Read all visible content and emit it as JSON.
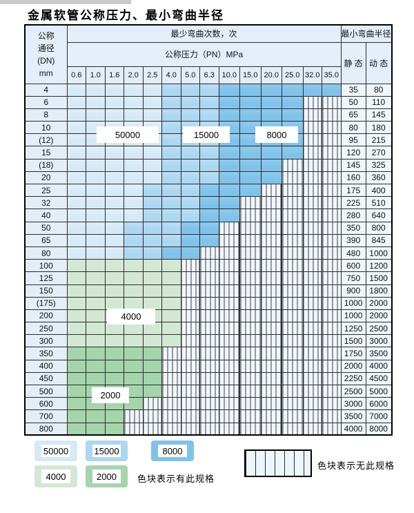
{
  "title": "金属软管公称压力、最小弯曲半径",
  "colors": {
    "b1": "#d6e9f7",
    "b2": "#abd7f1",
    "b3": "#7fc3ea",
    "g1": "#d3e8d3",
    "g2": "#a4d5ab",
    "hatchbg": "#f0f6fc",
    "labbg": "#e3eef9",
    "valbg": "#eff6fc"
  },
  "table": {
    "header": {
      "dn_label_lines": [
        "公称",
        "通径",
        "(DN)",
        "mm"
      ],
      "bend_cycles_label": "最少弯曲次数，次",
      "pressure_label": "公称压力（PN）MPa",
      "min_bend_radius_label": "最小弯曲半径",
      "static_label": "静 态",
      "dynamic_label": "动 态",
      "pressure_columns": [
        "0.6",
        "1.0",
        "1.6",
        "2.0",
        "2.5",
        "4.0",
        "5.0",
        "6.3",
        "10.0",
        "15.0",
        "20.0",
        "25.0",
        "32.0",
        "35.0"
      ]
    },
    "tone_meaning": {
      "b1": "50000",
      "b2": "15000",
      "b3": "8000",
      "g1": "4000",
      "g2": "2000",
      "hatch": "无此规格"
    },
    "rows": [
      {
        "dn": "4",
        "static": "35",
        "dynamic": "80",
        "type": "blue",
        "t1": 5,
        "t2": 3,
        "t3": 6
      },
      {
        "dn": "6",
        "static": "50",
        "dynamic": "110",
        "type": "blue",
        "t1": 5,
        "t2": 3,
        "t3": 4
      },
      {
        "dn": "8",
        "static": "65",
        "dynamic": "145",
        "type": "blue",
        "t1": 5,
        "t2": 3,
        "t3": 4
      },
      {
        "dn": "10",
        "static": "80",
        "dynamic": "180",
        "type": "blue",
        "t1": 5,
        "t2": 3,
        "t3": 4
      },
      {
        "dn": "(12)",
        "static": "95",
        "dynamic": "215",
        "type": "blue",
        "t1": 5,
        "t2": 3,
        "t3": 4
      },
      {
        "dn": "15",
        "static": "120",
        "dynamic": "270",
        "type": "blue",
        "t1": 5,
        "t2": 3,
        "t3": 4
      },
      {
        "dn": "(18)",
        "static": "145",
        "dynamic": "325",
        "type": "blue",
        "t1": 5,
        "t2": 3,
        "t3": 3
      },
      {
        "dn": "20",
        "static": "160",
        "dynamic": "360",
        "type": "blue",
        "t1": 5,
        "t2": 3,
        "t3": 3
      },
      {
        "dn": "25",
        "static": "175",
        "dynamic": "400",
        "type": "blue",
        "t1": 4,
        "t2": 3,
        "t3": 3
      },
      {
        "dn": "32",
        "static": "225",
        "dynamic": "510",
        "type": "blue",
        "t1": 4,
        "t2": 3,
        "t3": 2
      },
      {
        "dn": "40",
        "static": "280",
        "dynamic": "640",
        "type": "blue",
        "t1": 4,
        "t2": 3,
        "t3": 2
      },
      {
        "dn": "50",
        "static": "350",
        "dynamic": "800",
        "type": "blue",
        "t1": 3,
        "t2": 3,
        "t3": 2
      },
      {
        "dn": "65",
        "static": "390",
        "dynamic": "845",
        "type": "blue",
        "t1": 3,
        "t2": 3,
        "t3": 2
      },
      {
        "dn": "80",
        "static": "480",
        "dynamic": "1000",
        "type": "blue",
        "t1": 3,
        "t2": 2,
        "t3": 2
      },
      {
        "dn": "100",
        "static": "600",
        "dynamic": "1200",
        "type": "green",
        "tone": "g1",
        "n": 6
      },
      {
        "dn": "125",
        "static": "750",
        "dynamic": "1500",
        "type": "green",
        "tone": "g1",
        "n": 6
      },
      {
        "dn": "150",
        "static": "900",
        "dynamic": "1800",
        "type": "green",
        "tone": "g1",
        "n": 6
      },
      {
        "dn": "(175)",
        "static": "1000",
        "dynamic": "2000",
        "type": "green",
        "tone": "g1",
        "n": 6
      },
      {
        "dn": "200",
        "static": "1000",
        "dynamic": "2000",
        "type": "green",
        "tone": "g1",
        "n": 6
      },
      {
        "dn": "250",
        "static": "1250",
        "dynamic": "2500",
        "type": "green",
        "tone": "g1",
        "n": 6
      },
      {
        "dn": "300",
        "static": "1500",
        "dynamic": "3000",
        "type": "green",
        "tone": "g1",
        "n": 6
      },
      {
        "dn": "350",
        "static": "1750",
        "dynamic": "3500",
        "type": "green",
        "tone": "g2",
        "n": 5
      },
      {
        "dn": "400",
        "static": "2000",
        "dynamic": "4000",
        "type": "green",
        "tone": "g2",
        "n": 5
      },
      {
        "dn": "450",
        "static": "2250",
        "dynamic": "4500",
        "type": "green",
        "tone": "g2",
        "n": 5
      },
      {
        "dn": "500",
        "static": "2500",
        "dynamic": "5000",
        "type": "green",
        "tone": "g2",
        "n": 5
      },
      {
        "dn": "600",
        "static": "3000",
        "dynamic": "6000",
        "type": "green",
        "tone": "g2",
        "n": 4
      },
      {
        "dn": "700",
        "static": "3500",
        "dynamic": "7000",
        "type": "green",
        "tone": "g2",
        "n": 3
      },
      {
        "dn": "800",
        "static": "4000",
        "dynamic": "8000",
        "type": "green",
        "tone": "g2",
        "n": 3
      }
    ]
  },
  "grid_labels": [
    {
      "text": "50000"
    },
    {
      "text": "15000"
    },
    {
      "text": "8000"
    },
    {
      "text": "4000"
    },
    {
      "text": "2000"
    }
  ],
  "legend": {
    "cycle_swatches": [
      {
        "label": "50000",
        "tone": "b1"
      },
      {
        "label": "15000",
        "tone": "b2"
      },
      {
        "label": "8000",
        "tone": "b3"
      },
      {
        "label": "4000",
        "tone": "g1"
      },
      {
        "label": "2000",
        "tone": "g2"
      }
    ],
    "has_spec_note": "色块表示有此规格",
    "no_spec_note": "色块表示无此规格"
  }
}
